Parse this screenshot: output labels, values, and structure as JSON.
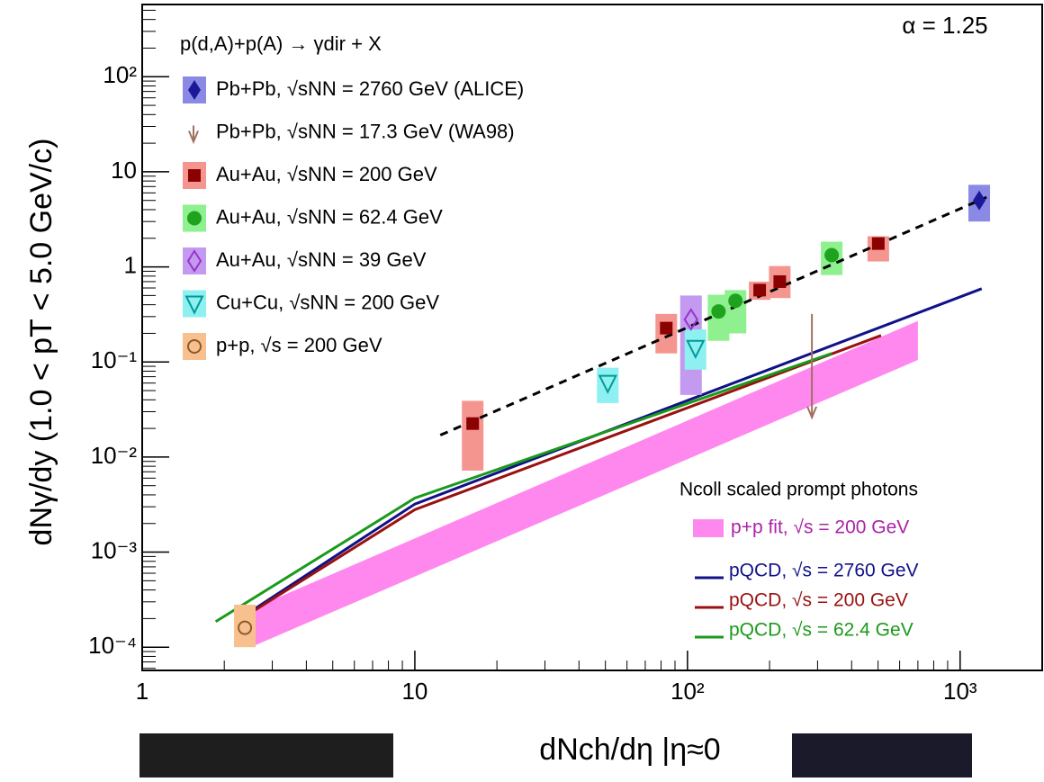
{
  "chart_data": {
    "type": "scatter",
    "log_x": true,
    "log_y": true,
    "x_label": "dNch/dη |η≈0",
    "y_label": "dNγ/dy  (1.0 < pT < 5.0 GeV/c)",
    "annotation": "α = 1.25",
    "legend_title": "p(d,A)+p(A) → γdir + X",
    "legend2_title": "Ncoll scaled prompt photons",
    "xlim": [
      1,
      2000
    ],
    "ylim": [
      5.7e-05,
      575
    ],
    "xticks": [
      {
        "value": 1,
        "label": "1"
      },
      {
        "value": 10,
        "label": "10"
      },
      {
        "value": 100,
        "label": "10²"
      },
      {
        "value": 1000,
        "label": "10³"
      }
    ],
    "yticks": [
      {
        "value": 0.0001,
        "label": "10⁻⁴"
      },
      {
        "value": 0.001,
        "label": "10⁻³"
      },
      {
        "value": 0.01,
        "label": "10⁻²"
      },
      {
        "value": 0.1,
        "label": "10⁻¹"
      },
      {
        "value": 1,
        "label": "1"
      },
      {
        "value": 10,
        "label": "10"
      },
      {
        "value": 100,
        "label": "10²"
      }
    ],
    "series": [
      {
        "name": "Pb+Pb, √sNN = 2760 GeV (ALICE)",
        "marker": "diamond",
        "color": "#1a1a99",
        "box_color": "#8a8ae6",
        "x": [
          1175
        ],
        "values": [
          5.0
        ],
        "box_low": [
          3.0
        ],
        "box_high": [
          7.3
        ]
      },
      {
        "name": "Pb+Pb, √sNN = 17.3 GeV (WA98)",
        "marker": "arrow",
        "color": "#a07060",
        "x": [
          286
        ],
        "values": [
          0.32
        ]
      },
      {
        "name": "Au+Au, √sNN = 200 GeV",
        "marker": "square",
        "color": "#8b0000",
        "box_color": "#f59590",
        "x": [
          16.3,
          83.6,
          184,
          218,
          501
        ],
        "values": [
          0.0225,
          0.227,
          0.57,
          0.7,
          1.76
        ],
        "box_low": [
          0.0072,
          0.123,
          0.45,
          0.47,
          1.14
        ],
        "box_high": [
          0.039,
          0.32,
          0.7,
          1.02,
          2.1
        ]
      },
      {
        "name": "Au+Au, √sNN = 62.4 GeV",
        "marker": "circle",
        "color": "#1fa31f",
        "box_color": "#8ef08e",
        "x": [
          130,
          150,
          338
        ],
        "values": [
          0.34,
          0.44,
          1.33
        ],
        "box_low": [
          0.167,
          0.2,
          0.82
        ],
        "box_high": [
          0.51,
          0.57,
          1.84
        ]
      },
      {
        "name": "Au+Au, √sNN = 39 GeV",
        "marker": "open-diamond",
        "color": "#9933cc",
        "box_color": "#c39af0",
        "x": [
          103
        ],
        "values": [
          0.28
        ],
        "box_low": [
          0.045
        ],
        "box_high": [
          0.5
        ]
      },
      {
        "name": "Cu+Cu, √sNN = 200 GeV",
        "marker": "open-triangle",
        "color": "#009999",
        "box_color": "#8ef0f0",
        "x": [
          51,
          107
        ],
        "values": [
          0.06,
          0.14
        ],
        "box_low": [
          0.037,
          0.083
        ],
        "box_high": [
          0.087,
          0.22
        ]
      },
      {
        "name": "p+p, √s = 200 GeV",
        "marker": "open-circle",
        "color": "#8b5a2b",
        "box_color": "#f7c08e",
        "x": [
          2.38
        ],
        "values": [
          0.00016
        ],
        "box_low": [
          0.0001
        ],
        "box_high": [
          0.00028
        ]
      }
    ],
    "fit": {
      "x": [
        12.4,
        1250
      ],
      "values": [
        0.017,
        5.4
      ],
      "color": "#000000"
    },
    "band": {
      "name": "p+p fit, √s = 200 GeV",
      "color": "#ff88ee",
      "text_color": "#aa22aa",
      "x": [
        2.5,
        700
      ],
      "low": [
        0.0001,
        0.105
      ],
      "high": [
        0.00025,
        0.27
      ]
    },
    "lines": [
      {
        "name": "pQCD, √s = 2760 GeV",
        "color": "#111188",
        "x": [
          2.4,
          10,
          1200
        ],
        "values": [
          0.00022,
          0.0032,
          0.59
        ]
      },
      {
        "name": "pQCD, √s = 200 GeV",
        "color": "#991111",
        "x": [
          2.5,
          10,
          513
        ],
        "values": [
          0.00023,
          0.0028,
          0.19
        ]
      },
      {
        "name": "pQCD, √s = 62.4 GeV",
        "color": "#1a9a1a",
        "x": [
          1.86,
          10,
          338
        ],
        "values": [
          0.000186,
          0.0037,
          0.123
        ]
      }
    ]
  }
}
